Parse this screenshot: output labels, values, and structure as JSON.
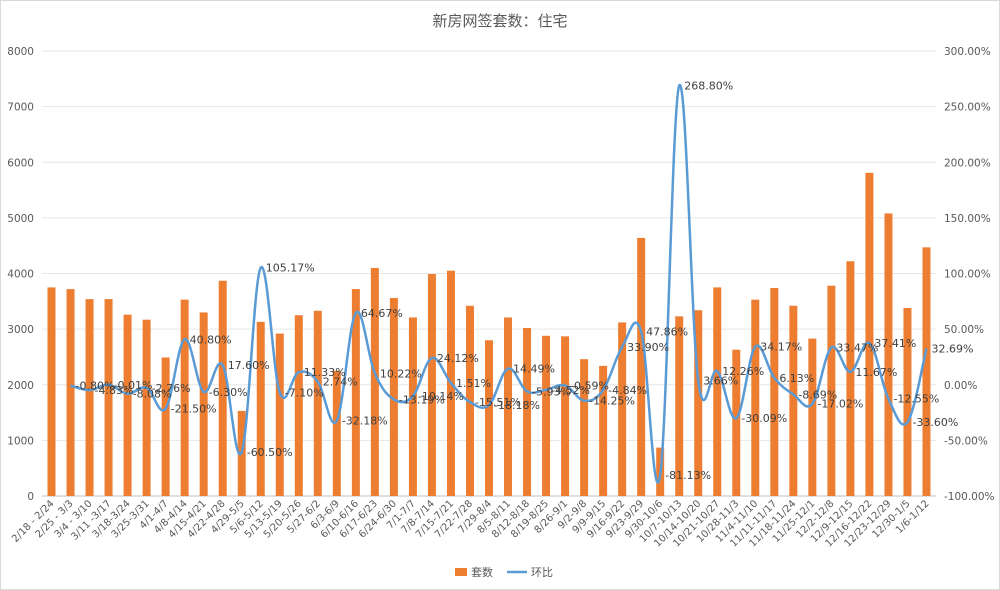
{
  "chart_data": {
    "type": "bar+line",
    "title": "新房网签套数：住宅",
    "categories": [
      "2/18 - 2/24",
      "2/25 - 3/3",
      "3/4 - 3/10",
      "3/11 -3/17",
      "3/18-3/24",
      "3/25-3/31",
      "4/1-4/7",
      "4/8-4/14",
      "4/15-4/21",
      "4/22-4/28",
      "4/29-5/5",
      "5/6-5/12",
      "5/13-5/19",
      "5/20-5/26",
      "5/27-6/2",
      "6/3-6/9",
      "6/10-6/16",
      "6/17-6/23",
      "6/24-6/30",
      "7/1-7/7",
      "7/8-7/14",
      "7/15-7/21",
      "7/22-7/28",
      "7/29-8/4",
      "8/5-8/11",
      "8/12-8/18",
      "8/19-8/25",
      "8/26-9/1",
      "9/2-9/8",
      "9/9-9/15",
      "9/16-9/22",
      "9/23-9/29",
      "9/30-10/6",
      "10/7-10/13",
      "10/14-10/20",
      "10/21-10/27",
      "10/28-11/3",
      "11/4-11/10",
      "11/11-11/17",
      "11/18-11/24",
      "11/25-12/1",
      "12/2-12/8",
      "12/9-12/15",
      "12/16-12/22",
      "12/23-12/29",
      "12/30-1/5",
      "1/6-1/12"
    ],
    "series": [
      {
        "name": "套数",
        "type": "bar",
        "axis": "left",
        "color": "#ED7D31",
        "values": [
          3750,
          3720,
          3540,
          3540,
          3260,
          3170,
          2490,
          3530,
          3300,
          3870,
          1530,
          3130,
          2920,
          3250,
          3330,
          2250,
          3720,
          4100,
          3560,
          3210,
          3990,
          4050,
          3420,
          2800,
          3210,
          3020,
          2880,
          2870,
          2460,
          2340,
          3120,
          4640,
          870,
          3230,
          3340,
          3750,
          2630,
          3530,
          3740,
          3420,
          2830,
          3780,
          4220,
          5810,
          5080,
          3380,
          4470
        ]
      },
      {
        "name": "环比",
        "type": "line",
        "axis": "right",
        "color": "#5B9BD5",
        "values": [
          null,
          -0.8,
          -4.83,
          -0.01,
          -8.08,
          -2.76,
          -21.5,
          40.8,
          -6.3,
          17.6,
          -60.5,
          105.17,
          -7.1,
          11.33,
          2.74,
          -32.18,
          64.67,
          10.22,
          -13.19,
          -10.14,
          24.12,
          1.51,
          -15.51,
          -18.18,
          14.49,
          -5.93,
          -4.52,
          -0.59,
          -14.25,
          -4.84,
          33.9,
          47.86,
          -81.13,
          268.8,
          3.66,
          12.26,
          -30.09,
          34.17,
          6.13,
          -8.69,
          -17.02,
          33.47,
          11.67,
          37.41,
          -12.55,
          -33.6,
          32.69
        ]
      }
    ],
    "data_labels": [
      {
        "i": 2,
        "text": "-0.80%"
      },
      {
        "i": 3,
        "text": "-4.83%"
      },
      {
        "i": 4,
        "text": "-0.01%"
      },
      {
        "i": 5,
        "text": "-8.08%"
      },
      {
        "i": 6,
        "text": "-2.76%"
      },
      {
        "i": 7,
        "text": "-21.50%"
      },
      {
        "i": 8,
        "text": "40.80%"
      },
      {
        "i": 9,
        "text": "-6.30%"
      },
      {
        "i": 10,
        "text": "17.60%"
      },
      {
        "i": 11,
        "text": "-60.50%"
      },
      {
        "i": 12,
        "text": "105.17%"
      },
      {
        "i": 13,
        "text": "-7.10%"
      },
      {
        "i": 14,
        "text": "11.33%"
      },
      {
        "i": 15,
        "text": "2.74%"
      },
      {
        "i": 16,
        "text": "-32.18%"
      },
      {
        "i": 17,
        "text": "64.67%"
      },
      {
        "i": 18,
        "text": "10.22%"
      },
      {
        "i": 19,
        "text": "-13.19%"
      },
      {
        "i": 20,
        "text": "-10.14%"
      },
      {
        "i": 21,
        "text": "24.12%"
      },
      {
        "i": 22,
        "text": "1.51%"
      },
      {
        "i": 23,
        "text": "-15.51%"
      },
      {
        "i": 24,
        "text": "-18.18%"
      },
      {
        "i": 25,
        "text": "14.49%"
      },
      {
        "i": 26,
        "text": "-5.93%"
      },
      {
        "i": 27,
        "text": "-4.52%"
      },
      {
        "i": 28,
        "text": "-0.59%"
      },
      {
        "i": 29,
        "text": "-14.25%"
      },
      {
        "i": 30,
        "text": "-4.84%"
      },
      {
        "i": 31,
        "text": "33.90%"
      },
      {
        "i": 32,
        "text": "47.86%"
      },
      {
        "i": 33,
        "text": "-81.13%"
      },
      {
        "i": 34,
        "text": "268.80%"
      },
      {
        "i": 35,
        "text": "3.66%"
      },
      {
        "i": 36,
        "text": "12.26%"
      },
      {
        "i": 37,
        "text": "-30.09%"
      },
      {
        "i": 38,
        "text": "34.17%"
      },
      {
        "i": 39,
        "text": "6.13%"
      },
      {
        "i": 40,
        "text": "-8.69%"
      },
      {
        "i": 41,
        "text": "-17.02%"
      },
      {
        "i": 42,
        "text": "33.47%"
      },
      {
        "i": 43,
        "text": "11.67%"
      },
      {
        "i": 44,
        "text": "37.41%"
      },
      {
        "i": 45,
        "text": "-12.55%"
      },
      {
        "i": 46,
        "text": "-33.60%"
      },
      {
        "i": 47,
        "text": "32.69%"
      }
    ],
    "y_left": {
      "min": 0,
      "max": 8000,
      "ticks": [
        "0",
        "1000",
        "2000",
        "3000",
        "4000",
        "5000",
        "6000",
        "7000",
        "8000"
      ]
    },
    "y_right": {
      "min": -100,
      "max": 300,
      "ticks": [
        "-100.00%",
        "-50.00%",
        "0.00%",
        "50.00%",
        "100.00%",
        "150.00%",
        "200.00%",
        "250.00%",
        "300.00%"
      ]
    },
    "grid": true,
    "legend": {
      "position": "bottom",
      "entries": [
        "套数",
        "环比"
      ]
    }
  }
}
